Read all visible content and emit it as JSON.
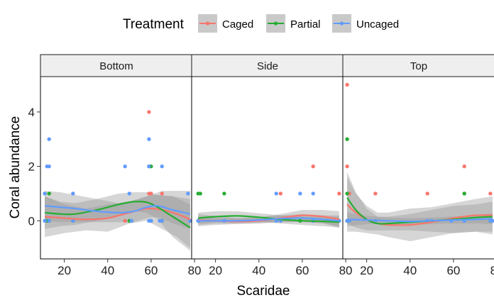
{
  "chart_data": {
    "type": "scatter",
    "title": "",
    "xlabel": "Scaridae",
    "ylabel": "Coral abundance",
    "facets": [
      "Bottom",
      "Side",
      "Top"
    ],
    "xlim": [
      9,
      79
    ],
    "ylim": [
      -1.4,
      5.3
    ],
    "xticks": [
      20,
      40,
      60,
      80
    ],
    "yticks": [
      0,
      2,
      4
    ],
    "grid": false,
    "legend": {
      "title": "Treatment",
      "position": "top",
      "entries": [
        "Caged",
        "Partial",
        "Uncaged"
      ]
    },
    "colors": {
      "Caged": "#F8766D",
      "Partial": "#26AD32",
      "Uncaged": "#619CFF",
      "ribbon": "#999999"
    },
    "points": {
      "Bottom": {
        "Caged": [
          [
            11,
            1
          ],
          [
            12,
            0
          ],
          [
            13,
            1
          ],
          [
            24,
            1
          ],
          [
            48,
            0
          ],
          [
            59,
            1
          ],
          [
            59,
            4
          ],
          [
            60,
            1
          ],
          [
            65,
            0
          ],
          [
            65,
            1
          ],
          [
            78,
            0
          ]
        ],
        "Partial": [
          [
            11,
            1
          ],
          [
            12,
            0
          ],
          [
            13,
            0
          ],
          [
            13,
            1
          ],
          [
            24,
            0
          ],
          [
            50,
            0
          ],
          [
            59,
            2
          ],
          [
            60,
            0
          ],
          [
            60,
            2
          ],
          [
            65,
            0
          ],
          [
            78,
            0
          ]
        ],
        "Uncaged": [
          [
            11,
            0
          ],
          [
            11,
            1
          ],
          [
            12,
            2
          ],
          [
            13,
            0
          ],
          [
            13,
            2
          ],
          [
            13,
            3
          ],
          [
            24,
            0
          ],
          [
            24,
            1
          ],
          [
            48,
            2
          ],
          [
            50,
            1
          ],
          [
            51,
            0
          ],
          [
            59,
            0
          ],
          [
            59,
            2
          ],
          [
            59,
            3
          ],
          [
            60,
            0
          ],
          [
            64,
            0
          ],
          [
            65,
            2
          ],
          [
            65,
            0
          ],
          [
            77,
            1
          ],
          [
            78,
            0
          ]
        ]
      },
      "Side": {
        "Caged": [
          [
            12,
            0
          ],
          [
            50,
            1
          ],
          [
            65,
            2
          ],
          [
            65,
            0
          ],
          [
            77,
            1
          ]
        ],
        "Partial": [
          [
            12,
            0
          ],
          [
            12,
            1
          ],
          [
            13,
            1
          ],
          [
            24,
            1
          ],
          [
            59,
            0
          ],
          [
            65,
            0
          ],
          [
            77,
            0
          ]
        ],
        "Uncaged": [
          [
            12,
            0
          ],
          [
            24,
            0
          ],
          [
            48,
            0
          ],
          [
            48,
            1
          ],
          [
            50,
            0
          ],
          [
            59,
            1
          ],
          [
            65,
            1
          ],
          [
            65,
            0
          ],
          [
            77,
            0
          ]
        ]
      },
      "Top": {
        "Caged": [
          [
            11,
            0
          ],
          [
            11,
            2
          ],
          [
            11,
            5
          ],
          [
            12,
            1
          ],
          [
            24,
            1
          ],
          [
            48,
            1
          ],
          [
            65,
            1
          ],
          [
            65,
            2
          ],
          [
            77,
            1
          ],
          [
            78,
            0
          ]
        ],
        "Partial": [
          [
            11,
            0
          ],
          [
            11,
            1
          ],
          [
            11,
            3
          ],
          [
            12,
            0
          ],
          [
            24,
            0
          ],
          [
            65,
            1
          ],
          [
            77,
            0
          ]
        ],
        "Uncaged": [
          [
            11,
            0
          ],
          [
            12,
            0
          ],
          [
            24,
            0
          ],
          [
            48,
            0
          ],
          [
            50,
            0
          ],
          [
            59,
            0
          ],
          [
            65,
            0
          ],
          [
            77,
            0
          ],
          [
            78,
            0
          ]
        ]
      }
    },
    "smooth": {
      "Bottom": {
        "Caged": {
          "x": [
            11,
            20,
            30,
            40,
            50,
            58,
            65,
            72,
            78
          ],
          "y": [
            0.15,
            0.1,
            0.05,
            0.1,
            0.3,
            0.45,
            0.4,
            0.25,
            0.05
          ],
          "lo": [
            -0.6,
            -0.45,
            -0.35,
            -0.4,
            -0.1,
            0.0,
            -0.3,
            -0.6,
            -1.0
          ],
          "hi": [
            0.9,
            0.6,
            0.45,
            0.6,
            0.7,
            0.9,
            1.1,
            1.1,
            1.1
          ]
        },
        "Partial": {
          "x": [
            11,
            18,
            25,
            35,
            45,
            52,
            58,
            63,
            70,
            78
          ],
          "y": [
            0.3,
            0.25,
            0.25,
            0.4,
            0.6,
            0.7,
            0.68,
            0.5,
            0.15,
            -0.25
          ],
          "lo": [
            -0.3,
            -0.2,
            -0.15,
            0.0,
            0.2,
            0.35,
            0.3,
            0.05,
            -0.6,
            -1.1
          ],
          "hi": [
            0.9,
            0.7,
            0.65,
            0.8,
            1.0,
            1.05,
            1.05,
            0.95,
            0.9,
            0.6
          ]
        },
        "Uncaged": {
          "x": [
            11,
            18,
            25,
            35,
            45,
            52,
            58,
            63,
            70,
            78
          ],
          "y": [
            0.55,
            0.5,
            0.45,
            0.35,
            0.3,
            0.35,
            0.5,
            0.55,
            0.4,
            0.25
          ],
          "lo": [
            0.0,
            -0.05,
            -0.05,
            -0.05,
            -0.05,
            -0.05,
            0.1,
            0.15,
            -0.1,
            -0.3
          ],
          "hi": [
            1.1,
            1.05,
            0.95,
            0.8,
            0.65,
            0.75,
            0.9,
            0.95,
            0.9,
            0.8
          ]
        }
      },
      "Side": {
        "Caged": {
          "x": [
            12,
            20,
            30,
            40,
            50,
            60,
            70,
            77
          ],
          "y": [
            0.02,
            0.0,
            -0.03,
            0.0,
            0.1,
            0.2,
            0.15,
            0.05
          ],
          "lo": [
            -0.2,
            -0.15,
            -0.12,
            -0.1,
            -0.05,
            0.0,
            -0.1,
            -0.25
          ],
          "hi": [
            0.25,
            0.18,
            0.1,
            0.12,
            0.25,
            0.4,
            0.4,
            0.35
          ]
        },
        "Partial": {
          "x": [
            12,
            20,
            30,
            40,
            50,
            60,
            70,
            77
          ],
          "y": [
            0.1,
            0.15,
            0.18,
            0.13,
            0.05,
            0.0,
            -0.02,
            -0.05
          ],
          "lo": [
            -0.1,
            -0.05,
            0.0,
            -0.02,
            -0.1,
            -0.15,
            -0.2,
            -0.25
          ],
          "hi": [
            0.3,
            0.35,
            0.35,
            0.28,
            0.2,
            0.15,
            0.15,
            0.15
          ]
        },
        "Uncaged": {
          "x": [
            12,
            20,
            30,
            40,
            50,
            60,
            70,
            77
          ],
          "y": [
            0.0,
            0.0,
            0.0,
            0.03,
            0.08,
            0.1,
            0.05,
            0.0
          ],
          "lo": [
            -0.15,
            -0.1,
            -0.1,
            -0.08,
            -0.05,
            -0.05,
            -0.1,
            -0.2
          ],
          "hi": [
            0.15,
            0.1,
            0.1,
            0.14,
            0.2,
            0.25,
            0.2,
            0.2
          ]
        }
      },
      "Top": {
        "Caged": {
          "x": [
            11,
            15,
            20,
            25,
            30,
            40,
            50,
            60,
            70,
            78
          ],
          "y": [
            0.6,
            0.3,
            0.05,
            -0.1,
            -0.15,
            -0.15,
            -0.05,
            0.1,
            0.2,
            0.2
          ],
          "lo": [
            -0.4,
            -0.4,
            -0.45,
            -0.5,
            -0.6,
            -0.75,
            -0.6,
            -0.45,
            -0.4,
            -0.5
          ],
          "hi": [
            1.6,
            1.0,
            0.55,
            0.3,
            0.3,
            0.45,
            0.5,
            0.65,
            0.8,
            0.9
          ]
        },
        "Partial": {
          "x": [
            11,
            15,
            20,
            25,
            30,
            40,
            50,
            60,
            70,
            78
          ],
          "y": [
            0.85,
            0.4,
            0.05,
            -0.1,
            -0.1,
            -0.05,
            0.0,
            0.05,
            0.12,
            0.15
          ],
          "lo": [
            -0.1,
            -0.25,
            -0.35,
            -0.35,
            -0.35,
            -0.35,
            -0.4,
            -0.45,
            -0.4,
            -0.4
          ],
          "hi": [
            1.8,
            1.05,
            0.45,
            0.15,
            0.15,
            0.25,
            0.4,
            0.55,
            0.6,
            0.7
          ]
        },
        "Uncaged": {
          "x": [
            11,
            20,
            30,
            40,
            50,
            60,
            70,
            78
          ],
          "y": [
            0.05,
            0.03,
            0.0,
            -0.02,
            0.0,
            0.03,
            0.05,
            0.08
          ],
          "lo": [
            -0.2,
            -0.12,
            -0.12,
            -0.15,
            -0.12,
            -0.1,
            -0.1,
            -0.12
          ],
          "hi": [
            0.3,
            0.18,
            0.12,
            0.1,
            0.12,
            0.16,
            0.2,
            0.28
          ]
        }
      }
    }
  }
}
